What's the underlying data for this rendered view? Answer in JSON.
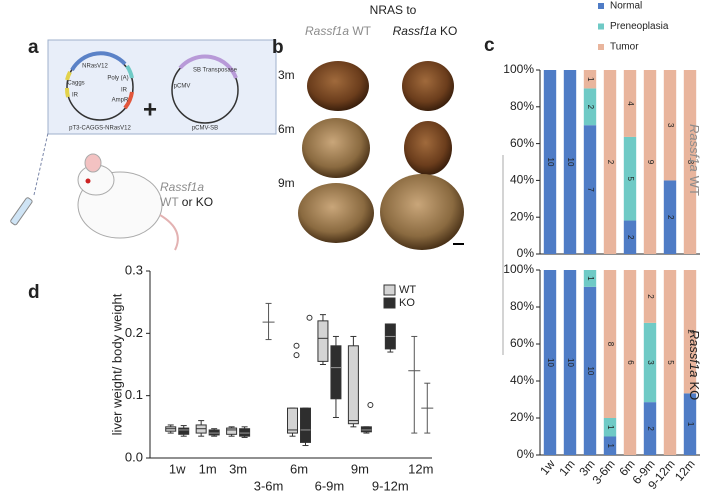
{
  "panel_a": {
    "letter": "a",
    "plasmid1": {
      "name": "pT3-CAGGS-NRasV12",
      "features": [
        "NRasV12",
        "Poly (A)",
        "Caggs",
        "IR",
        "IR",
        "AmpR"
      ]
    },
    "plasmid2": {
      "name": "pCMV-SB",
      "features": [
        "SB Transposase",
        "pCMV"
      ]
    },
    "plus": "+",
    "mouse": {
      "gene": "Rassf1a",
      "wt": "WT",
      "or_ko": "or KO"
    }
  },
  "panel_b": {
    "letter": "b",
    "heading": "NRAS to",
    "columns": [
      {
        "gene": "Rassf1a",
        "genotype": "WT"
      },
      {
        "gene": "Rassf1a",
        "genotype": "KO"
      }
    ],
    "rows": [
      "3m",
      "6m",
      "9m"
    ]
  },
  "chart_data": [
    {
      "type": "stacked-bar",
      "panel": "c",
      "gene": "Rassf1a",
      "genotype": "WT",
      "normalize": true,
      "ylim": [
        0,
        100
      ],
      "yticks": [
        {
          "value": 0,
          "label": "0%"
        },
        {
          "value": 20,
          "label": "20%"
        },
        {
          "value": 40,
          "label": "40%"
        },
        {
          "value": 60,
          "label": "60%"
        },
        {
          "value": 80,
          "label": "80%"
        },
        {
          "value": 100,
          "label": "100%"
        }
      ],
      "legend": "top-right",
      "series": [
        {
          "name": "Normal",
          "color": "#4f7cc6",
          "values": [
            10,
            10,
            7,
            0,
            2,
            0,
            2,
            0
          ]
        },
        {
          "name": "Preneoplasia",
          "color": "#6fcac6",
          "values": [
            0,
            0,
            2,
            0,
            5,
            0,
            0,
            0
          ]
        },
        {
          "name": "Tumor",
          "color": "#e9b59d",
          "values": [
            0,
            0,
            1,
            2,
            4,
            9,
            3,
            3
          ]
        }
      ]
    },
    {
      "type": "stacked-bar",
      "gene": "Rassf1a",
      "genotype": "KO",
      "normalize": true,
      "categories": [
        "1w",
        "1m",
        "3m",
        "3-6m",
        "6m",
        "6-9m",
        "9-12m",
        "12m"
      ],
      "ylim": [
        0,
        100
      ],
      "yticks": [
        {
          "value": 0,
          "label": "0%"
        },
        {
          "value": 20,
          "label": "20%"
        },
        {
          "value": 40,
          "label": "40%"
        },
        {
          "value": 60,
          "label": "60%"
        },
        {
          "value": 80,
          "label": "80%"
        },
        {
          "value": 100,
          "label": "100%"
        }
      ],
      "series": [
        {
          "color": "#4f7cc6",
          "values": [
            10,
            10,
            10,
            1,
            0,
            2,
            0,
            1
          ]
        },
        {
          "color": "#6fcac6",
          "values": [
            0,
            0,
            1,
            1,
            0,
            3,
            0,
            0
          ]
        },
        {
          "color": "#e9b59d",
          "values": [
            0,
            0,
            0,
            8,
            6,
            2,
            5,
            2
          ]
        }
      ]
    },
    {
      "type": "box",
      "panel": "d",
      "ylabel": "liver weight/ body weight",
      "categories": [
        "1w",
        "1m",
        "3m",
        "3-6m",
        "6m",
        "6-9m",
        "9m",
        "9-12m",
        "12m"
      ],
      "ylim": [
        0,
        0.3
      ],
      "yticks": [
        {
          "value": 0,
          "label": "0.0"
        },
        0.1,
        0.2,
        0.3
      ],
      "legend": "top-right",
      "series": [
        {
          "name": "WT",
          "color": "#d4d4d4",
          "values": [
            {
              "min": 0.04,
              "q1": 0.043,
              "median": 0.047,
              "q3": 0.05,
              "max": 0.053,
              "outliers": []
            },
            {
              "min": 0.035,
              "q1": 0.04,
              "median": 0.047,
              "q3": 0.053,
              "max": 0.06,
              "outliers": []
            },
            {
              "min": 0.035,
              "q1": 0.038,
              "median": 0.045,
              "q3": 0.048,
              "max": 0.05,
              "outliers": []
            },
            null,
            {
              "min": 0.035,
              "q1": 0.04,
              "median": 0.045,
              "q3": 0.08,
              "max": 0.08,
              "outliers": [
                0.18,
                0.165
              ]
            },
            {
              "min": 0.15,
              "q1": 0.155,
              "median": 0.192,
              "q3": 0.22,
              "max": 0.23,
              "outliers": []
            },
            {
              "min": 0.05,
              "q1": 0.055,
              "median": 0.06,
              "q3": 0.18,
              "max": 0.195,
              "outliers": []
            },
            null,
            {
              "mean": 0.14,
              "low": 0.04,
              "high": 0.195
            }
          ]
        },
        {
          "name": "KO",
          "color": "#2e2e2e",
          "values": [
            {
              "min": 0.035,
              "q1": 0.038,
              "median": 0.045,
              "q3": 0.048,
              "max": 0.052,
              "outliers": []
            },
            {
              "min": 0.035,
              "q1": 0.037,
              "median": 0.04,
              "q3": 0.045,
              "max": 0.047,
              "outliers": []
            },
            {
              "min": 0.033,
              "q1": 0.035,
              "median": 0.04,
              "q3": 0.047,
              "max": 0.05,
              "outliers": []
            },
            {
              "mean": 0.218,
              "low": 0.19,
              "high": 0.248
            },
            {
              "min": 0.02,
              "q1": 0.025,
              "median": 0.045,
              "q3": 0.08,
              "max": 0.08,
              "outliers": [
                0.225
              ]
            },
            {
              "min": 0.065,
              "q1": 0.095,
              "median": 0.145,
              "q3": 0.18,
              "max": 0.195,
              "outliers": []
            },
            {
              "min": 0.04,
              "q1": 0.042,
              "median": 0.045,
              "q3": 0.05,
              "max": 0.05,
              "outliers": [
                0.085
              ]
            },
            {
              "min": 0.17,
              "q1": 0.175,
              "median": 0.195,
              "q3": 0.215,
              "max": 0.215,
              "outliers": []
            },
            {
              "mean": 0.08,
              "low": 0.04,
              "high": 0.12
            }
          ]
        }
      ]
    }
  ]
}
